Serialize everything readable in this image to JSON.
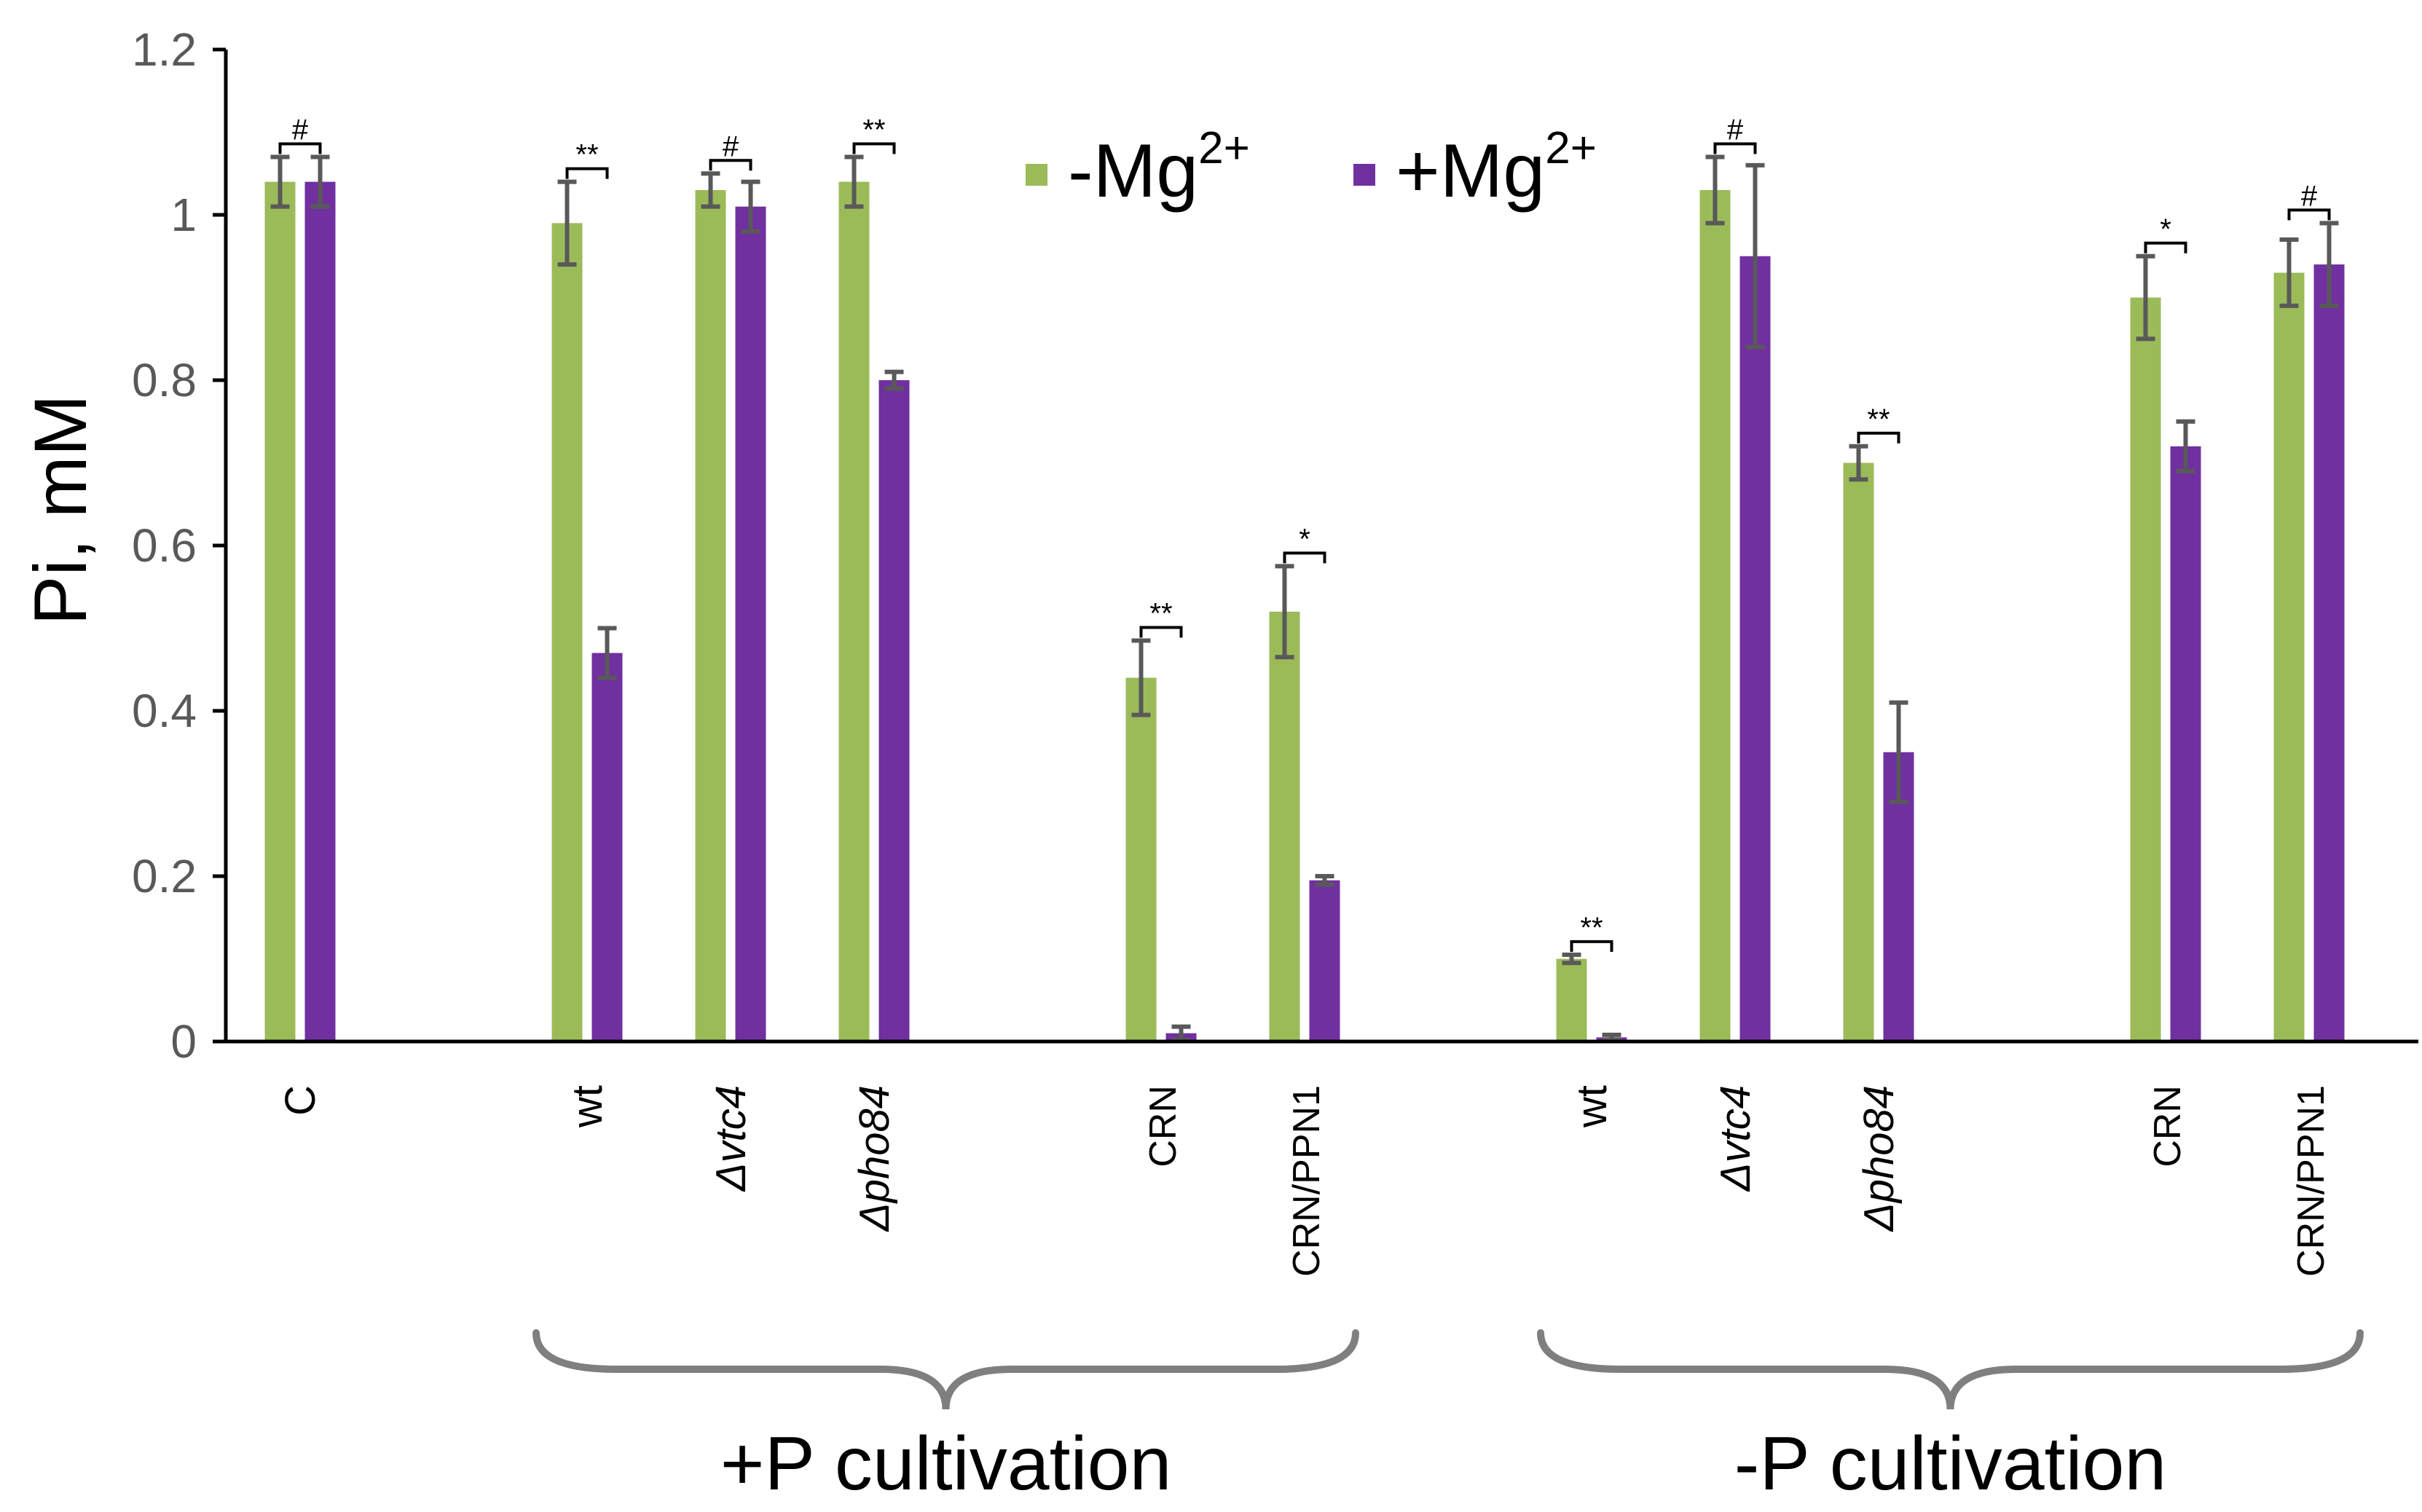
{
  "chart_data": {
    "type": "bar",
    "title": "",
    "xlabel": "",
    "ylabel": "Pi, mM",
    "ylim": [
      0,
      1.2
    ],
    "yticks": [
      "0",
      "0.2",
      "0.4",
      "0.6",
      "0.8",
      "1",
      "1.2"
    ],
    "ytick_values": [
      0,
      0.2,
      0.4,
      0.6,
      0.8,
      1.0,
      1.2
    ],
    "legend": {
      "position": "top-center",
      "items": [
        {
          "base": "-Mg",
          "sup": "2+",
          "color": "#9BBB59"
        },
        {
          "base": "+Mg",
          "sup": "2+",
          "color": "#7030A0"
        }
      ]
    },
    "series": [
      {
        "name": "-Mg2+",
        "color": "#9BBB59",
        "values": [
          1.04,
          0.99,
          1.03,
          1.04,
          0.44,
          0.52,
          0.1,
          1.03,
          0.7,
          0.9,
          0.93
        ],
        "errors": [
          0.03,
          0.05,
          0.02,
          0.03,
          0.045,
          0.055,
          0.005,
          0.04,
          0.02,
          0.05,
          0.04
        ]
      },
      {
        "name": "+Mg2+",
        "color": "#7030A0",
        "values": [
          1.04,
          0.47,
          1.01,
          0.8,
          0.01,
          0.195,
          0.005,
          0.95,
          0.35,
          0.72,
          0.94
        ],
        "errors": [
          0.03,
          0.03,
          0.03,
          0.01,
          0.008,
          0.005,
          0.003,
          0.11,
          0.06,
          0.03,
          0.05
        ]
      }
    ],
    "categories": [
      {
        "label": "C",
        "italic": false
      },
      {
        "label": "wt",
        "italic": false
      },
      {
        "label": "Δvtc4",
        "italic": true
      },
      {
        "label": "Δpho84",
        "italic": true
      },
      {
        "label": "CRN",
        "italic": false,
        "small": true
      },
      {
        "label": "CRN/PPN1",
        "italic": false,
        "small": true
      },
      {
        "label": "wt",
        "italic": false
      },
      {
        "label": "Δvtc4",
        "italic": true
      },
      {
        "label": "Δpho84",
        "italic": true
      },
      {
        "label": "CRN",
        "italic": false,
        "small": true
      },
      {
        "label": "CRN/PPN1",
        "italic": false,
        "small": true
      }
    ],
    "category_slots": [
      0,
      2,
      3,
      4,
      6,
      7,
      9,
      10,
      11,
      13,
      14
    ],
    "slot_count": 15,
    "significance": [
      "#",
      "**",
      "#",
      "**",
      "**",
      "*",
      "**",
      "#",
      "**",
      "*",
      "#"
    ],
    "groups": [
      {
        "label": "+P cultivation",
        "from": 1,
        "to": 5
      },
      {
        "label": "-P cultivation",
        "from": 6,
        "to": 10
      }
    ]
  }
}
